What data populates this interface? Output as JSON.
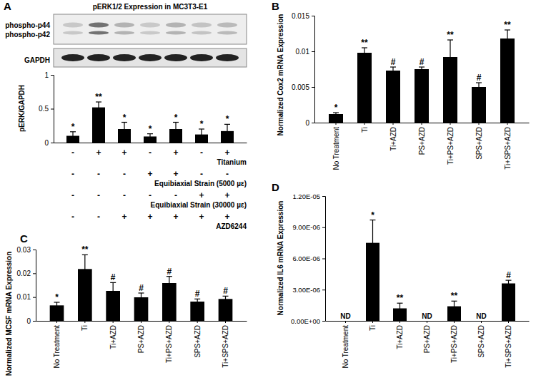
{
  "chart_data": [
    {
      "type": "bar",
      "panel": "A",
      "title": "pERK1/2 Expression in MC3T3-E1",
      "blot_labels": [
        "phospho-p44",
        "phospho-p42",
        "GAPDH"
      ],
      "y_label": "pERK/GAPDH",
      "categories": [
        null,
        null,
        null,
        null,
        null,
        null,
        null
      ],
      "values": [
        0.1,
        0.52,
        0.2,
        0.09,
        0.2,
        0.12,
        0.17
      ],
      "errors": [
        0.06,
        0.08,
        0.1,
        0.04,
        0.1,
        0.08,
        0.1
      ],
      "significance": [
        "*",
        "**",
        "*",
        "*",
        "*",
        "*",
        "*"
      ],
      "treatment_table": {
        "rows": [
          {
            "label": "Titanium",
            "marks": [
              "-",
              "+",
              "+",
              "-",
              "+",
              "-",
              "+"
            ]
          },
          {
            "label": "Equibiaxial Strain (5000 µε)",
            "marks": [
              "-",
              "-",
              "-",
              "+",
              "+",
              "-",
              "-"
            ]
          },
          {
            "label": "Equibiaxial Strain (30000 µε)",
            "marks": [
              "-",
              "-",
              "-",
              "-",
              "-",
              "+",
              "+"
            ]
          },
          {
            "label": "AZD6244",
            "marks": [
              "-",
              "-",
              "+",
              "+",
              "+",
              "+",
              "+"
            ]
          }
        ]
      },
      "color": "#000000",
      "ylim": [
        0,
        1
      ],
      "yticks": [
        0,
        0.5,
        1
      ],
      "grid": false,
      "tick_labels": "y"
    },
    {
      "type": "bar",
      "panel": "B",
      "y_label": "Normalized Cox2 mRNA Expression",
      "categories": [
        "No Treatment",
        "Ti",
        "Ti+AZD",
        "PS+AZD",
        "Ti+PS+AZD",
        "SPS+AZD",
        "Ti+SPS+AZD"
      ],
      "values": [
        0.0012,
        0.0098,
        0.0073,
        0.0075,
        0.0092,
        0.005,
        0.0118
      ],
      "errors": [
        0.0002,
        0.0007,
        0.0005,
        0.0003,
        0.0024,
        0.0006,
        0.0012
      ],
      "significance": [
        "*",
        "**",
        "#",
        "#",
        "**",
        "#",
        "**"
      ],
      "color": "#000000",
      "ylim": [
        0,
        0.015
      ],
      "yticks": [
        0,
        0.005,
        0.01,
        0.015
      ],
      "grid": false
    },
    {
      "type": "bar",
      "panel": "C",
      "y_label": "Normalized MCSF mRNA Expression",
      "categories": [
        "No Treatment",
        "Ti",
        "Ti+AZD",
        "PS+AZD",
        "Ti+PS+AZD",
        "SPS+AZD",
        "Ti+SPS+AZD"
      ],
      "values": [
        0.0065,
        0.0218,
        0.0126,
        0.0099,
        0.0159,
        0.0081,
        0.0092
      ],
      "errors": [
        0.0013,
        0.006,
        0.0035,
        0.0018,
        0.0028,
        0.0011,
        0.0012
      ],
      "significance": [
        "*",
        "**",
        "#",
        "#",
        "#",
        "#",
        "#"
      ],
      "color": "#000000",
      "ylim": [
        0,
        0.03
      ],
      "yticks": [
        0,
        0.01,
        0.02,
        0.03
      ],
      "grid": false
    },
    {
      "type": "bar",
      "panel": "D",
      "y_label": "Normalized IL6 mRNA Expression",
      "categories": [
        "No Treatment",
        "Ti",
        "Ti+AZD",
        "PS+AZD",
        "Ti+PS+AZD",
        "SPS+AZD",
        "Ti+SPS+AZD"
      ],
      "values": [
        null,
        7.5e-06,
        1.2e-06,
        null,
        1.4e-06,
        null,
        3.6e-06
      ],
      "errors": [
        null,
        2.2e-06,
        5e-07,
        null,
        5e-07,
        null,
        3e-07
      ],
      "significance": [
        "ND",
        "*",
        "**",
        "ND",
        "**",
        "ND",
        "#"
      ],
      "color": "#000000",
      "ylim": [
        0,
        1.2e-05
      ],
      "yticks": [
        {
          "value": 0,
          "label": "0.00E+00"
        },
        {
          "value": 3e-06,
          "label": "3.00E-06"
        },
        {
          "value": 6e-06,
          "label": "6.00E-06"
        },
        {
          "value": 9e-06,
          "label": "9.00E-06"
        },
        {
          "value": 1.2e-05,
          "label": "1.20E-05"
        }
      ],
      "grid": false
    }
  ]
}
